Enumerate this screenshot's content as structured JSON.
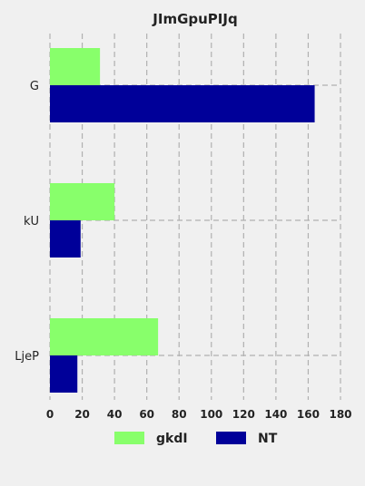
{
  "chart_data": {
    "type": "bar",
    "orientation": "horizontal",
    "title": "JImGpuPIJq",
    "categories": [
      "G",
      "kU",
      "LjeP"
    ],
    "series": [
      {
        "name": "gkdI",
        "values": [
          31,
          40,
          67
        ],
        "color": "#88ff6b"
      },
      {
        "name": "NT",
        "values": [
          164,
          19,
          17
        ],
        "color": "#000099"
      }
    ],
    "xlim": [
      0,
      180
    ],
    "xticks": [
      "0",
      "20",
      "40",
      "60",
      "80",
      "100",
      "120",
      "140",
      "160",
      "180"
    ],
    "xlabel": "",
    "ylabel": "",
    "grid": true,
    "legend_position": "bottom"
  }
}
